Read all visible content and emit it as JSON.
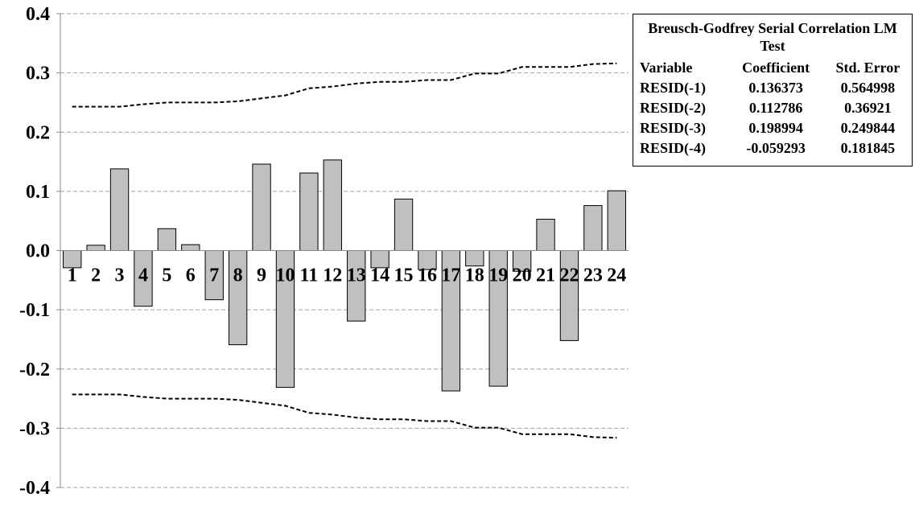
{
  "chart_data": {
    "type": "bar",
    "categories": [
      "1",
      "2",
      "3",
      "4",
      "5",
      "6",
      "7",
      "8",
      "9",
      "10",
      "11",
      "12",
      "13",
      "14",
      "15",
      "16",
      "17",
      "18",
      "19",
      "20",
      "21",
      "22",
      "23",
      "24"
    ],
    "values": [
      -0.029,
      0.009,
      0.138,
      -0.094,
      0.037,
      0.01,
      -0.083,
      -0.159,
      0.146,
      -0.231,
      0.131,
      0.153,
      -0.119,
      -0.029,
      0.087,
      -0.032,
      -0.237,
      -0.026,
      -0.229,
      -0.035,
      0.053,
      -0.152,
      0.076,
      0.101
    ],
    "upper_band": [
      0.243,
      0.243,
      0.243,
      0.247,
      0.25,
      0.25,
      0.25,
      0.252,
      0.257,
      0.262,
      0.274,
      0.277,
      0.282,
      0.285,
      0.285,
      0.288,
      0.288,
      0.299,
      0.299,
      0.31,
      0.31,
      0.31,
      0.315,
      0.316
    ],
    "lower_band": [
      -0.243,
      -0.243,
      -0.243,
      -0.247,
      -0.25,
      -0.25,
      -0.25,
      -0.252,
      -0.257,
      -0.262,
      -0.274,
      -0.277,
      -0.282,
      -0.285,
      -0.285,
      -0.288,
      -0.288,
      -0.299,
      -0.299,
      -0.31,
      -0.31,
      -0.31,
      -0.315,
      -0.316
    ],
    "y_ticks": [
      "0.4",
      "0.3",
      "0.2",
      "0.1",
      "0.0",
      "-0.1",
      "-0.2",
      "-0.3",
      "-0.4"
    ],
    "ylim": [
      -0.4,
      0.4
    ],
    "grid": "horizontal dashed",
    "bar_color": "#c0c0c0",
    "legend_placement": "top-right"
  },
  "legend": {
    "title": "Breusch-Godfrey Serial Correlation LM Test",
    "headers": [
      "Variable",
      "Coefficient",
      "Std. Error"
    ],
    "rows": [
      [
        "RESID(-1)",
        "0.136373",
        "0.564998"
      ],
      [
        "RESID(-2)",
        "0.112786",
        "0.36921"
      ],
      [
        "RESID(-3)",
        "0.198994",
        "0.249844"
      ],
      [
        "RESID(-4)",
        "-0.059293",
        "0.181845"
      ]
    ]
  }
}
